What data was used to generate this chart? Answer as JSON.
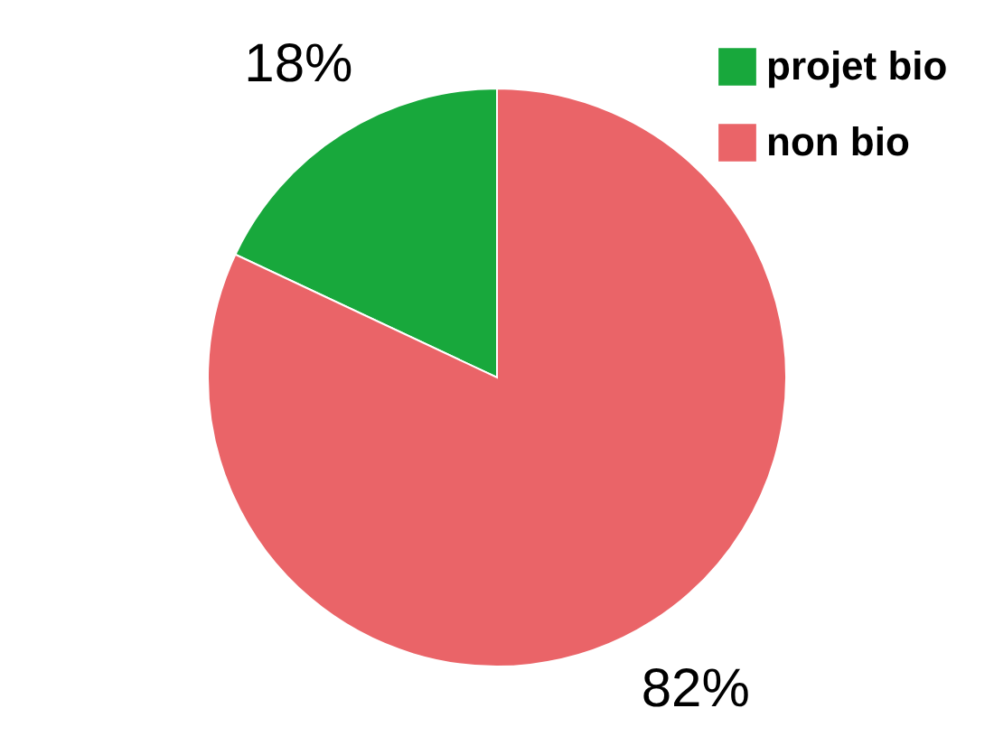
{
  "chart_data": {
    "type": "pie",
    "categories": [
      "projet bio",
      "non bio"
    ],
    "values": [
      18,
      82
    ],
    "colors": [
      "#18a83c",
      "#ea6468"
    ],
    "value_labels": [
      "18%",
      "82%"
    ],
    "legend": "top right"
  }
}
